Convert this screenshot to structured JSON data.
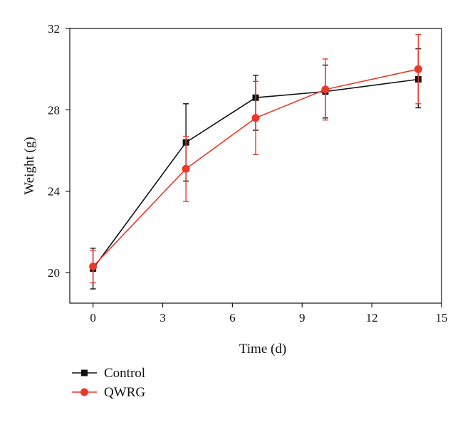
{
  "chart_data": {
    "type": "line",
    "xlabel": "Time (d)",
    "ylabel": "Weight (g)",
    "xlim": [
      -1,
      15
    ],
    "ylim": [
      18.5,
      32
    ],
    "xticks": [
      0,
      3,
      6,
      9,
      12,
      15
    ],
    "yticks": [
      20,
      24,
      28,
      32
    ],
    "grid": false,
    "legend_position": "bottom-left",
    "series": [
      {
        "name": "Control",
        "color": "#111111",
        "marker": "square",
        "x": [
          0,
          4,
          7,
          10,
          14
        ],
        "y": [
          20.2,
          26.4,
          28.6,
          28.9,
          29.5
        ],
        "err_low": [
          1.0,
          1.9,
          1.6,
          1.3,
          1.4
        ],
        "err_high": [
          1.0,
          1.9,
          1.1,
          1.3,
          1.5
        ]
      },
      {
        "name": "QWRG",
        "color": "#e8392b",
        "marker": "circle",
        "x": [
          0,
          4,
          7,
          10,
          14
        ],
        "y": [
          20.3,
          25.1,
          27.6,
          29.0,
          30.0
        ],
        "err_low": [
          0.8,
          1.6,
          1.8,
          1.5,
          1.7
        ],
        "err_high": [
          0.8,
          1.6,
          1.8,
          1.5,
          1.7
        ]
      }
    ]
  }
}
